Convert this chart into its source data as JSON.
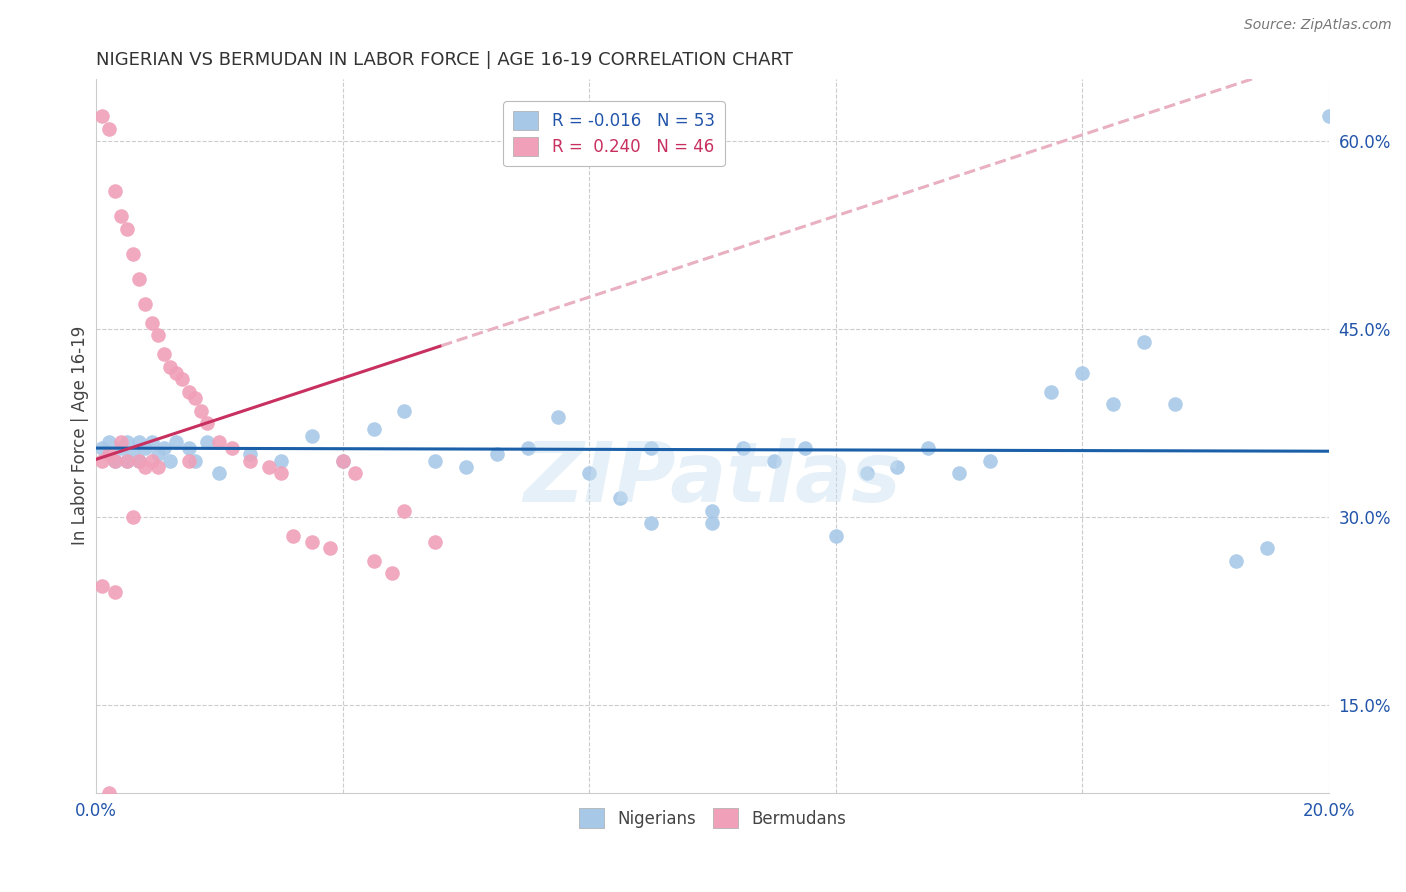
{
  "title": "NIGERIAN VS BERMUDAN IN LABOR FORCE | AGE 16-19 CORRELATION CHART",
  "source": "Source: ZipAtlas.com",
  "ylabel": "In Labor Force | Age 16-19",
  "xlim": [
    0.0,
    0.2
  ],
  "ylim": [
    0.08,
    0.65
  ],
  "ytick_right": [
    0.15,
    0.3,
    0.45,
    0.6
  ],
  "ytick_right_labels": [
    "15.0%",
    "30.0%",
    "45.0%",
    "60.0%"
  ],
  "nigerian_x": [
    0.001,
    0.002,
    0.003,
    0.004,
    0.005,
    0.005,
    0.006,
    0.007,
    0.007,
    0.008,
    0.009,
    0.01,
    0.011,
    0.012,
    0.013,
    0.015,
    0.016,
    0.018,
    0.02,
    0.025,
    0.03,
    0.035,
    0.04,
    0.045,
    0.05,
    0.055,
    0.06,
    0.065,
    0.07,
    0.075,
    0.08,
    0.085,
    0.09,
    0.09,
    0.1,
    0.1,
    0.105,
    0.11,
    0.115,
    0.12,
    0.125,
    0.13,
    0.135,
    0.14,
    0.145,
    0.155,
    0.16,
    0.165,
    0.17,
    0.175,
    0.185,
    0.19,
    0.2
  ],
  "nigerian_y": [
    0.355,
    0.36,
    0.345,
    0.355,
    0.36,
    0.345,
    0.35,
    0.36,
    0.345,
    0.355,
    0.36,
    0.35,
    0.355,
    0.345,
    0.36,
    0.355,
    0.345,
    0.36,
    0.335,
    0.35,
    0.345,
    0.365,
    0.345,
    0.37,
    0.385,
    0.345,
    0.34,
    0.35,
    0.355,
    0.38,
    0.335,
    0.315,
    0.355,
    0.295,
    0.305,
    0.295,
    0.355,
    0.345,
    0.355,
    0.285,
    0.335,
    0.34,
    0.355,
    0.335,
    0.345,
    0.4,
    0.415,
    0.39,
    0.44,
    0.39,
    0.265,
    0.275,
    0.62
  ],
  "bermudan_x": [
    0.001,
    0.001,
    0.002,
    0.002,
    0.003,
    0.003,
    0.004,
    0.004,
    0.005,
    0.005,
    0.006,
    0.006,
    0.007,
    0.007,
    0.008,
    0.008,
    0.009,
    0.009,
    0.01,
    0.01,
    0.011,
    0.012,
    0.013,
    0.014,
    0.015,
    0.015,
    0.016,
    0.017,
    0.018,
    0.02,
    0.022,
    0.025,
    0.028,
    0.03,
    0.032,
    0.035,
    0.038,
    0.04,
    0.042,
    0.045,
    0.048,
    0.05,
    0.055,
    0.001,
    0.003,
    0.002
  ],
  "bermudan_y": [
    0.62,
    0.345,
    0.61,
    0.35,
    0.56,
    0.345,
    0.54,
    0.36,
    0.53,
    0.345,
    0.51,
    0.3,
    0.49,
    0.345,
    0.47,
    0.34,
    0.455,
    0.345,
    0.445,
    0.34,
    0.43,
    0.42,
    0.415,
    0.41,
    0.4,
    0.345,
    0.395,
    0.385,
    0.375,
    0.36,
    0.355,
    0.345,
    0.34,
    0.335,
    0.285,
    0.28,
    0.275,
    0.345,
    0.335,
    0.265,
    0.255,
    0.305,
    0.28,
    0.245,
    0.24,
    0.08
  ],
  "blue_line_color": "#1a5fa8",
  "pink_line_color": "#c83060",
  "pink_dash_color": "#e8b0c0",
  "dot_blue": "#a8c8e8",
  "dot_pink": "#f0a0b8",
  "watermark": "ZIPatlas",
  "grid_color": "#cccccc",
  "title_color": "#333333",
  "axis_color": "#2255aa",
  "bg_color": "#ffffff",
  "legend_r_blue": "R = -0.016",
  "legend_n_blue": "N = 53",
  "legend_r_pink": "R =  0.240",
  "legend_n_pink": "N = 46"
}
